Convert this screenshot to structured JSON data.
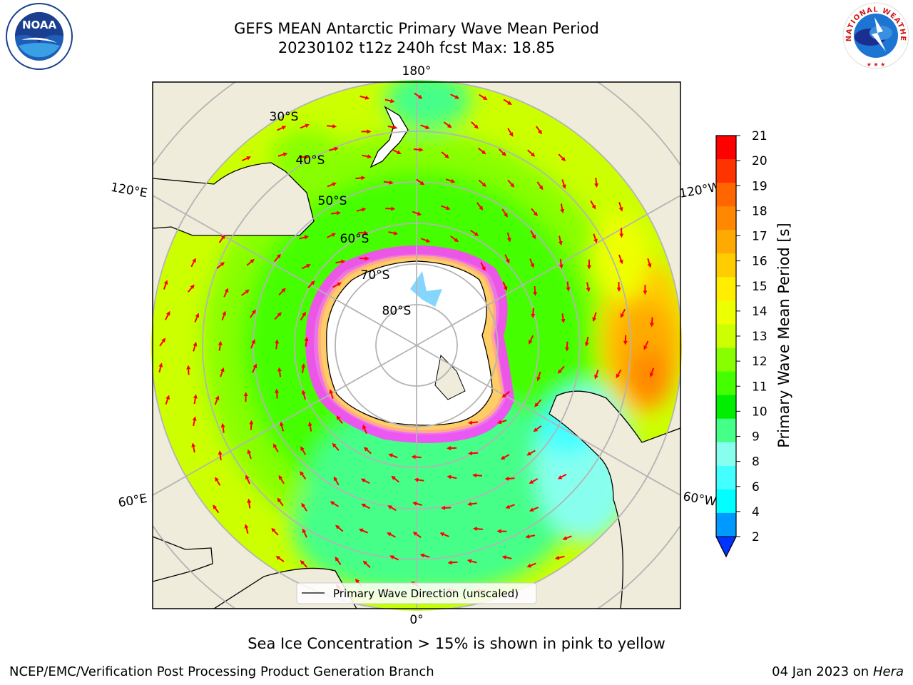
{
  "header": {
    "title_line1": "GEFS MEAN Antarctic Primary Wave Mean Period",
    "title_line2": "20230102 t12z 240h fcst   Max: 18.85"
  },
  "logos": {
    "left": {
      "icon": "noaa-logo-icon",
      "text": "NOAA"
    },
    "right": {
      "icon": "nws-logo-icon",
      "text": "NATIONAL WEATHER SERVICE"
    }
  },
  "map": {
    "longitude_labels": {
      "top": "180°",
      "bottom": "0°",
      "left_upper": "120°E",
      "left_lower": "60°E",
      "right_upper": "120°W",
      "right_lower": "60°W"
    },
    "latitude_labels": [
      "30°S",
      "40°S",
      "50°S",
      "60°S",
      "70°S",
      "80°S"
    ],
    "legend_label": "Primary Wave Direction (unscaled)",
    "colors": {
      "land": "#efecdc",
      "ice": "#ff44ff",
      "arrow": "#ff0000",
      "grid": "#b4b4b4"
    }
  },
  "colorbar": {
    "label": "Primary Wave Mean Period [s]",
    "ticks": [
      "21",
      "20",
      "19",
      "18",
      "17",
      "16",
      "15",
      "14",
      "13",
      "12",
      "11",
      "10",
      "9",
      "8",
      "6",
      "4",
      "2"
    ],
    "colors": [
      "#ff0000",
      "#ff3300",
      "#ff6600",
      "#ff8800",
      "#ffaa00",
      "#ffcc00",
      "#ffee00",
      "#eeff00",
      "#ccff00",
      "#88ff00",
      "#44ff00",
      "#00ee00",
      "#44ff88",
      "#88ffee",
      "#44ffff",
      "#00ffff",
      "#0099ff",
      "#0033ff"
    ]
  },
  "caption": "Sea Ice Concentration > 15% is shown in pink to yellow",
  "footer": {
    "left": "NCEP/EMC/Verification Post Processing Product Generation Branch",
    "right_date": "04 Jan 2023 on ",
    "right_host": "Hera"
  }
}
